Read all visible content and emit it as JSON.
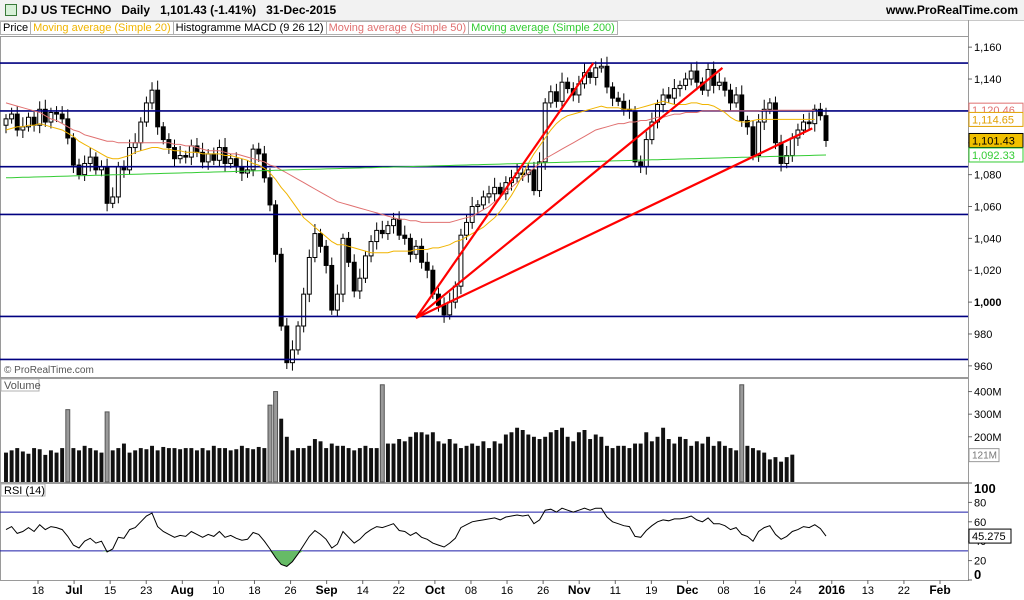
{
  "header": {
    "instrument": "DJ US TECHNO",
    "period": "Daily",
    "last": "1,101.43",
    "change": "(-1.41%)",
    "date": "31-Dec-2015",
    "site": "www.ProRealTime.com"
  },
  "legend": [
    {
      "label": "Price",
      "color": "#000000"
    },
    {
      "label": "Moving average (Simple 20)",
      "color": "#f0b400"
    },
    {
      "label": "Histogramme MACD (9 26 12)",
      "color": "#000000"
    },
    {
      "label": "Moving average (Simple 50)",
      "color": "#e07070"
    },
    {
      "label": "Moving average (Simple 200)",
      "color": "#33cc33"
    }
  ],
  "watermark": "© ProRealTime.com",
  "panels": {
    "volume_label": "Volume",
    "rsi_label": "RSI (14)"
  },
  "chart_data": [
    {
      "type": "candlestick",
      "title": "DJ US TECHNO Daily",
      "y_ticks": [
        960,
        980,
        1000,
        1020,
        1040,
        1060,
        1080,
        1100,
        1120,
        1140,
        1160
      ],
      "y_tick_labels": [
        "960",
        "980",
        "1,000",
        "1,020",
        "1,040",
        "1,060",
        "1,080",
        "1,100",
        "1,120",
        "1,140",
        "1,160"
      ],
      "ylim": [
        953,
        1167
      ],
      "x_tick_labels": [
        "18",
        "Jul",
        "15",
        "23",
        "Aug",
        "10",
        "18",
        "26",
        "Sep",
        "14",
        "22",
        "Oct",
        "08",
        "16",
        "26",
        "Nov",
        "11",
        "19",
        "Dec",
        "08",
        "16",
        "24",
        "2016",
        "13",
        "22",
        "Feb"
      ],
      "horizontal_lines": [
        1150,
        1120,
        1085,
        1055,
        991,
        964
      ],
      "price_labels": [
        {
          "text": "1,120.46",
          "value": 1120.46,
          "color": "#e07070"
        },
        {
          "text": "1,114.65",
          "value": 1114.65,
          "color": "#e0a000"
        },
        {
          "text": "1,101.43",
          "value": 1101.43,
          "color": "#000000"
        },
        {
          "text": "1,092.33",
          "value": 1092.33,
          "color": "#33cc33"
        }
      ],
      "close": [
        1115,
        1118,
        1108,
        1110,
        1116,
        1111,
        1121,
        1113,
        1119,
        1118,
        1115,
        1103,
        1086,
        1080,
        1087,
        1091,
        1083,
        1085,
        1062,
        1066,
        1085,
        1083,
        1097,
        1100,
        1113,
        1125,
        1133,
        1110,
        1102,
        1097,
        1090,
        1092,
        1091,
        1098,
        1094,
        1088,
        1093,
        1089,
        1097,
        1087,
        1090,
        1085,
        1081,
        1083,
        1096,
        1093,
        1078,
        1061,
        1030,
        985,
        962,
        970,
        985,
        1005,
        1028,
        1043,
        1035,
        1023,
        995,
        1005,
        1040,
        1025,
        1007,
        1015,
        1029,
        1038,
        1045,
        1043,
        1048,
        1052,
        1042,
        1040,
        1030,
        1035,
        1025,
        1020,
        1005,
        998,
        992,
        1000,
        1010,
        1042,
        1050,
        1060,
        1061,
        1066,
        1068,
        1072,
        1068,
        1075,
        1078,
        1081,
        1080,
        1083,
        1070,
        1088,
        1125,
        1132,
        1126,
        1138,
        1134,
        1130,
        1137,
        1144,
        1141,
        1147,
        1148,
        1135,
        1128,
        1126,
        1121,
        1120,
        1088,
        1085,
        1102,
        1113,
        1124,
        1130,
        1128,
        1134,
        1136,
        1140,
        1145,
        1138,
        1133,
        1146,
        1136,
        1138,
        1133,
        1125,
        1130,
        1114,
        1110,
        1092,
        1113,
        1121,
        1125,
        1100,
        1087,
        1092,
        1103,
        1108,
        1113,
        1112,
        1121,
        1117,
        1101.43
      ],
      "ma20": [
        1108,
        1109,
        1110,
        1110,
        1111,
        1111,
        1112,
        1111,
        1110,
        1109,
        1108,
        1106,
        1104,
        1101,
        1099,
        1097,
        1095,
        1093,
        1091,
        1090,
        1090,
        1091,
        1092,
        1094,
        1095,
        1096,
        1097,
        1097,
        1096,
        1096,
        1095,
        1095,
        1094,
        1094,
        1094,
        1093,
        1093,
        1093,
        1093,
        1092,
        1092,
        1091,
        1090,
        1089,
        1087,
        1086,
        1084,
        1081,
        1077,
        1072,
        1068,
        1063,
        1058,
        1053,
        1050,
        1047,
        1044,
        1041,
        1038,
        1036,
        1036,
        1035,
        1034,
        1033,
        1032,
        1031,
        1031,
        1031,
        1031,
        1032,
        1032,
        1032,
        1032,
        1033,
        1033,
        1033,
        1034,
        1034,
        1035,
        1036,
        1038,
        1039,
        1041,
        1043,
        1045,
        1047,
        1050,
        1053,
        1057,
        1062,
        1067,
        1073,
        1080,
        1087,
        1093,
        1098,
        1103,
        1108,
        1112,
        1115,
        1117,
        1118,
        1119,
        1120,
        1121,
        1122,
        1123,
        1122,
        1122,
        1122,
        1121,
        1121,
        1121,
        1122,
        1123,
        1124,
        1125,
        1126,
        1125,
        1124,
        1124,
        1124,
        1125,
        1125,
        1124,
        1124,
        1123,
        1121,
        1119,
        1116,
        1114,
        1113,
        1113,
        1114,
        1114.65,
        1114.65,
        1114.65,
        1114.65,
        1114.65,
        1114.65,
        1114.65,
        1114.65,
        1114.65,
        1114.65,
        1114.65
      ],
      "ma50": [
        1125,
        1124,
        1123,
        1122,
        1121,
        1120,
        1119,
        1117,
        1115,
        1114,
        1112,
        1110,
        1108,
        1107,
        1105,
        1104,
        1103,
        1102,
        1101,
        1101,
        1100,
        1100,
        1100,
        1100,
        1100,
        1100,
        1100,
        1100,
        1100,
        1100,
        1099,
        1099,
        1098,
        1098,
        1097,
        1096,
        1095,
        1095,
        1095,
        1094,
        1093,
        1093,
        1092,
        1091,
        1090,
        1089,
        1088,
        1086,
        1085,
        1083,
        1081,
        1079,
        1077,
        1075,
        1073,
        1071,
        1069,
        1067,
        1065,
        1063,
        1062,
        1061,
        1060,
        1059,
        1058,
        1057,
        1056,
        1055,
        1054,
        1053,
        1052,
        1052,
        1051,
        1051,
        1050,
        1050,
        1050,
        1050,
        1050,
        1050,
        1051,
        1052,
        1053,
        1054,
        1056,
        1058,
        1060,
        1063,
        1066,
        1069,
        1072,
        1075,
        1078,
        1081,
        1084,
        1087,
        1090,
        1092,
        1094,
        1096,
        1098,
        1100,
        1102,
        1104,
        1106,
        1108,
        1109,
        1110,
        1111,
        1112,
        1112,
        1113,
        1113,
        1114,
        1114,
        1115,
        1116,
        1116,
        1117,
        1118,
        1118,
        1119,
        1119,
        1119,
        1120,
        1120,
        1120,
        1120,
        1120,
        1120,
        1120,
        1120,
        1120,
        1120,
        1120,
        1120.46,
        1120.46,
        1120.46,
        1120.46,
        1120.46,
        1120.46,
        1120.46,
        1120.46,
        1120.46,
        1120.46
      ],
      "ma200_start": 1078,
      "ma200_end": 1092.33,
      "red_lines": [
        {
          "from_index": 73,
          "from_value": 990,
          "to_index": 101,
          "to_value": 1150
        },
        {
          "from_index": 73,
          "from_value": 990,
          "to_index": 124,
          "to_value": 1147
        },
        {
          "from_index": 73,
          "from_value": 990,
          "to_index": 140,
          "to_value": 1109
        }
      ]
    },
    {
      "type": "bar",
      "title": "Volume",
      "y_tick_labels": [
        "200M",
        "300M",
        "400M"
      ],
      "y_ticks": [
        200,
        300,
        400
      ],
      "ylim": [
        0,
        460
      ],
      "last_label": "121M",
      "values": [
        130,
        140,
        150,
        135,
        125,
        150,
        145,
        120,
        140,
        130,
        150,
        320,
        150,
        140,
        160,
        150,
        140,
        130,
        310,
        140,
        150,
        170,
        130,
        140,
        150,
        145,
        160,
        140,
        155,
        150,
        150,
        145,
        150,
        150,
        140,
        150,
        140,
        160,
        150,
        150,
        140,
        145,
        160,
        150,
        145,
        155,
        150,
        340,
        400,
        280,
        200,
        140,
        150,
        150,
        160,
        190,
        180,
        150,
        170,
        160,
        160,
        150,
        140,
        150,
        160,
        150,
        150,
        430,
        170,
        170,
        190,
        180,
        200,
        220,
        220,
        210,
        220,
        180,
        170,
        190,
        170,
        150,
        160,
        170,
        160,
        180,
        150,
        180,
        170,
        210,
        220,
        240,
        230,
        210,
        200,
        190,
        200,
        220,
        230,
        240,
        200,
        180,
        220,
        230,
        190,
        210,
        200,
        160,
        150,
        160,
        160,
        150,
        170,
        170,
        220,
        180,
        200,
        240,
        190,
        170,
        200,
        190,
        160,
        180,
        170,
        200,
        160,
        180,
        160,
        150,
        140,
        430,
        160,
        150,
        140,
        130,
        100,
        110,
        90,
        110,
        121
      ]
    },
    {
      "type": "line",
      "title": "RSI (14)",
      "y_tick_labels": [
        "0",
        "20",
        "40",
        "60",
        "80",
        "100"
      ],
      "y_ticks": [
        0,
        20,
        40,
        60,
        80,
        100
      ],
      "ylim": [
        0,
        100
      ],
      "levels": [
        70,
        30
      ],
      "last_label": "45.275",
      "values": [
        52,
        55,
        48,
        50,
        54,
        50,
        57,
        52,
        55,
        54,
        52,
        45,
        36,
        33,
        40,
        43,
        38,
        40,
        29,
        32,
        44,
        43,
        52,
        54,
        60,
        66,
        69,
        55,
        50,
        47,
        44,
        46,
        45,
        50,
        47,
        44,
        47,
        45,
        50,
        44,
        46,
        43,
        41,
        42,
        49,
        47,
        40,
        32,
        23,
        16,
        14,
        19,
        27,
        36,
        45,
        51,
        47,
        42,
        33,
        37,
        50,
        44,
        38,
        42,
        48,
        52,
        55,
        54,
        56,
        58,
        51,
        50,
        46,
        49,
        44,
        42,
        38,
        36,
        34,
        38,
        43,
        54,
        57,
        60,
        61,
        62,
        63,
        64,
        62,
        65,
        66,
        67,
        66,
        67,
        58,
        62,
        72,
        73,
        70,
        74,
        72,
        70,
        72,
        74,
        72,
        74,
        74,
        65,
        60,
        58,
        56,
        55,
        45,
        44,
        51,
        56,
        60,
        62,
        61,
        63,
        63,
        64,
        66,
        62,
        60,
        64,
        58,
        58,
        56,
        52,
        54,
        47,
        45,
        40,
        50,
        54,
        56,
        47,
        42,
        45,
        50,
        52,
        55,
        54,
        57,
        53,
        45.275
      ]
    }
  ]
}
